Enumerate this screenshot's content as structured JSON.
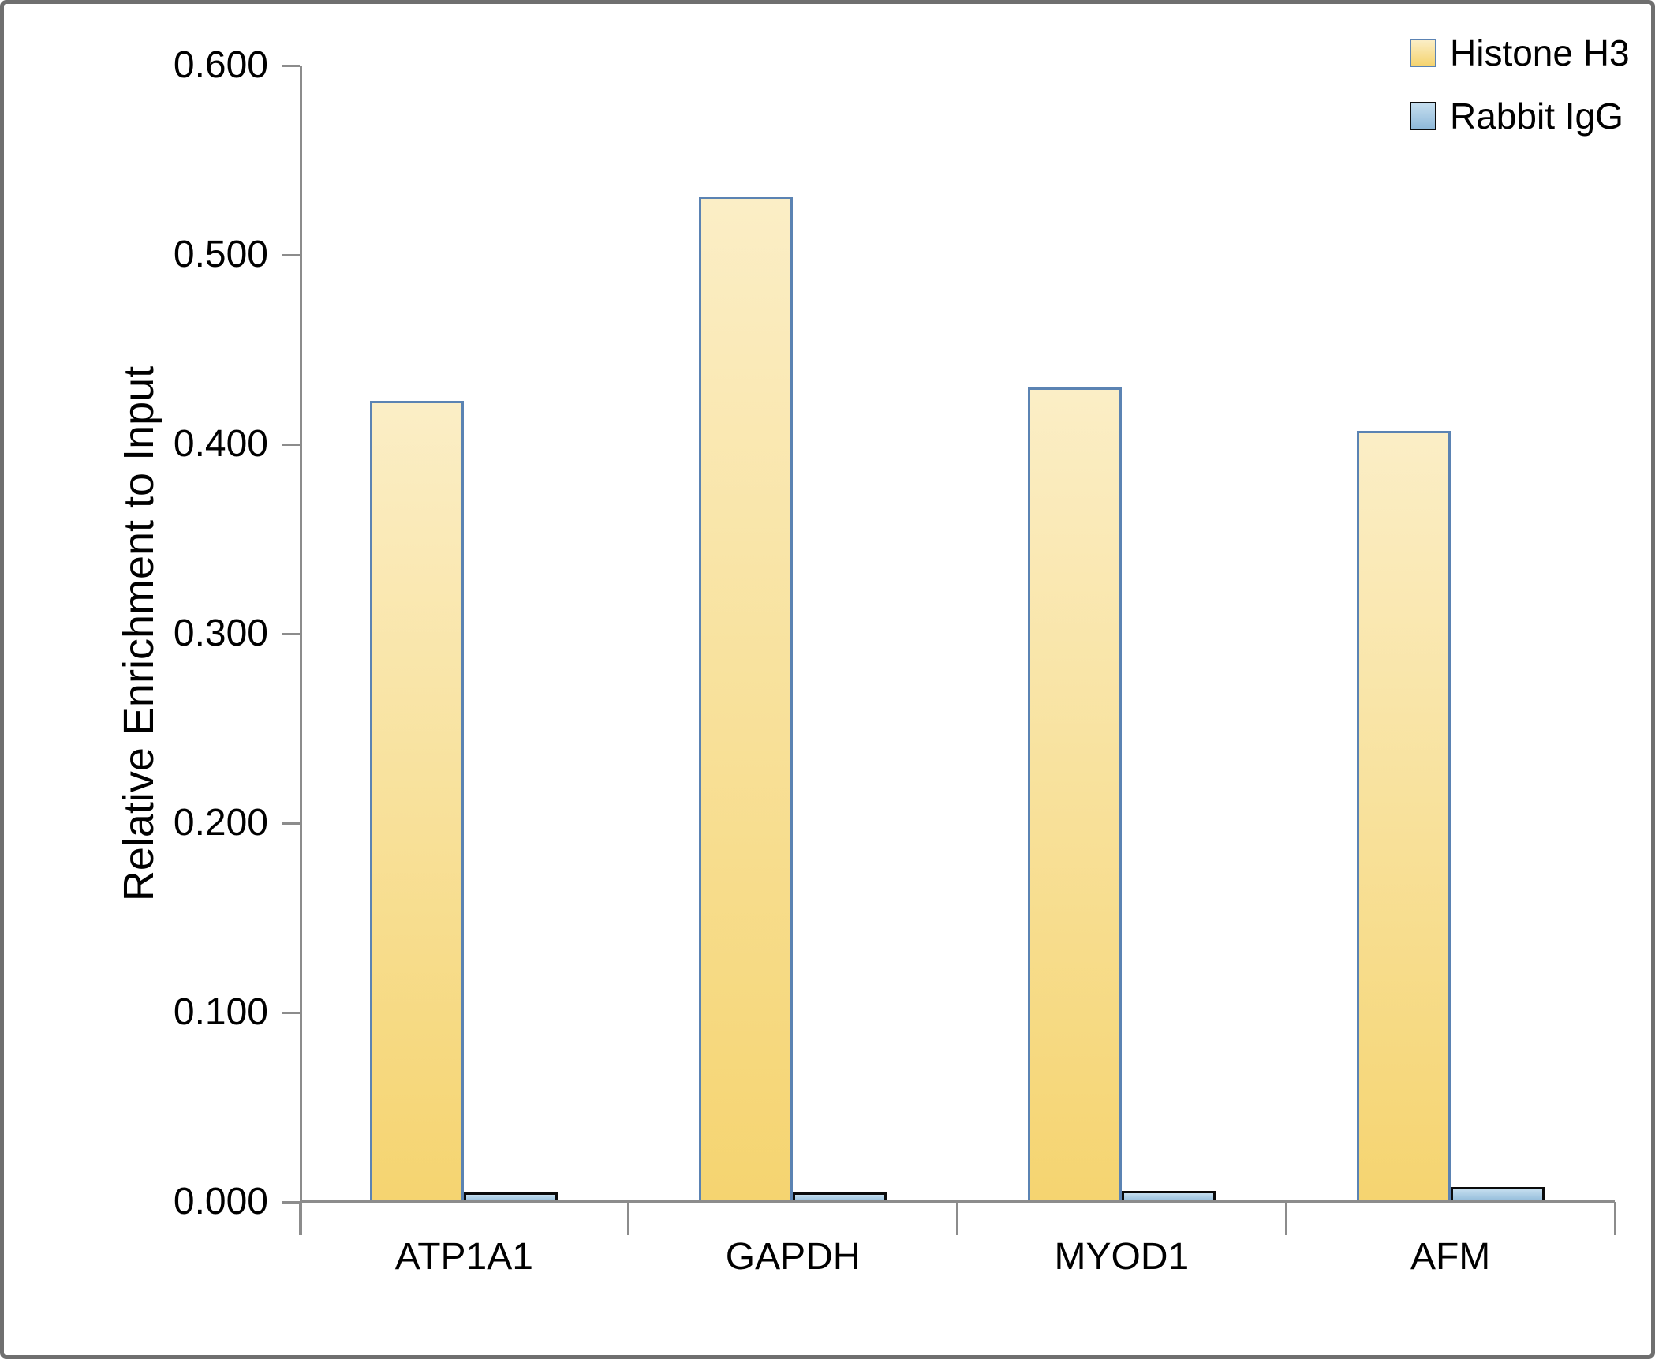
{
  "chart_data": {
    "type": "bar",
    "title": "",
    "xlabel": "",
    "ylabel": "Relative Enrichment to Input",
    "categories": [
      "ATP1A1",
      "GAPDH",
      "MYOD1",
      "AFM"
    ],
    "series": [
      {
        "name": "Histone H3",
        "values": [
          0.423,
          0.531,
          0.43,
          0.407
        ],
        "fill_top": "#FBEEC6",
        "fill_bottom": "#F5D470",
        "border": "#5B83B3"
      },
      {
        "name": "Rabbit IgG",
        "values": [
          0.005,
          0.005,
          0.006,
          0.008
        ],
        "fill_top": "#C5DEEF",
        "fill_bottom": "#8FB9D9",
        "border": "#0B0B0B"
      }
    ],
    "ylim": [
      0,
      0.6
    ],
    "y_tick_labels": [
      "0.000",
      "0.100",
      "0.200",
      "0.300",
      "0.400",
      "0.500",
      "0.600"
    ],
    "grid": false,
    "legend_position": "top-right",
    "colors": {
      "axis": "#8C8C8C",
      "text": "#000000",
      "frame": "#6F6F6F",
      "background": "#FFFFFF"
    }
  }
}
